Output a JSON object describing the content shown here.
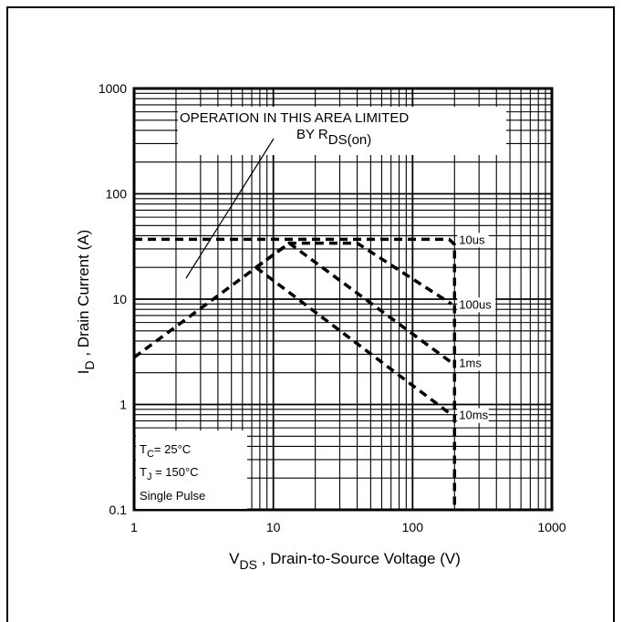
{
  "chart_data": {
    "type": "line",
    "xscale": "log",
    "yscale": "log",
    "xlim": [
      1,
      1000
    ],
    "ylim": [
      0.1,
      1000
    ],
    "x_ticks": [
      "1",
      "10",
      "100",
      "1000"
    ],
    "y_ticks": [
      "1000",
      "100",
      "10",
      "1",
      "0.1"
    ],
    "xlabel": {
      "main": "V",
      "sub": "DS",
      "rest": " , Drain-to-Source Voltage (V)"
    },
    "ylabel": {
      "main": "I",
      "sub": "D",
      "rest": " , Drain Current (A)"
    },
    "annotation": {
      "line1": "OPERATION IN THIS AREA LIMITED",
      "line2_main": "BY R",
      "line2_sub": "DS(on)"
    },
    "conditions": {
      "tc_main": "T",
      "tc_sub": "C",
      "tc_rest": "= 25°C",
      "tj_main": "T",
      "tj_sub": "J",
      "tj_rest": " = 150°C",
      "pulse": "Single Pulse"
    },
    "series": [
      {
        "name": "10us",
        "points": [
          [
            1,
            37
          ],
          [
            183,
            37
          ],
          [
            200,
            33
          ],
          [
            200,
            0.1
          ]
        ]
      },
      {
        "name": "100us",
        "points": [
          [
            1,
            2.8
          ],
          [
            13,
            34
          ],
          [
            40,
            34
          ],
          [
            190,
            9
          ]
        ]
      },
      {
        "name": "1ms",
        "points": [
          [
            7.5,
            20
          ],
          [
            13,
            34
          ],
          [
            190,
            2.5
          ]
        ]
      },
      {
        "name": "10ms",
        "points": [
          [
            7.5,
            20
          ],
          [
            190,
            0.8
          ]
        ]
      }
    ],
    "grid": true,
    "colors": {
      "line": "#000000",
      "background": "#ffffff"
    }
  }
}
